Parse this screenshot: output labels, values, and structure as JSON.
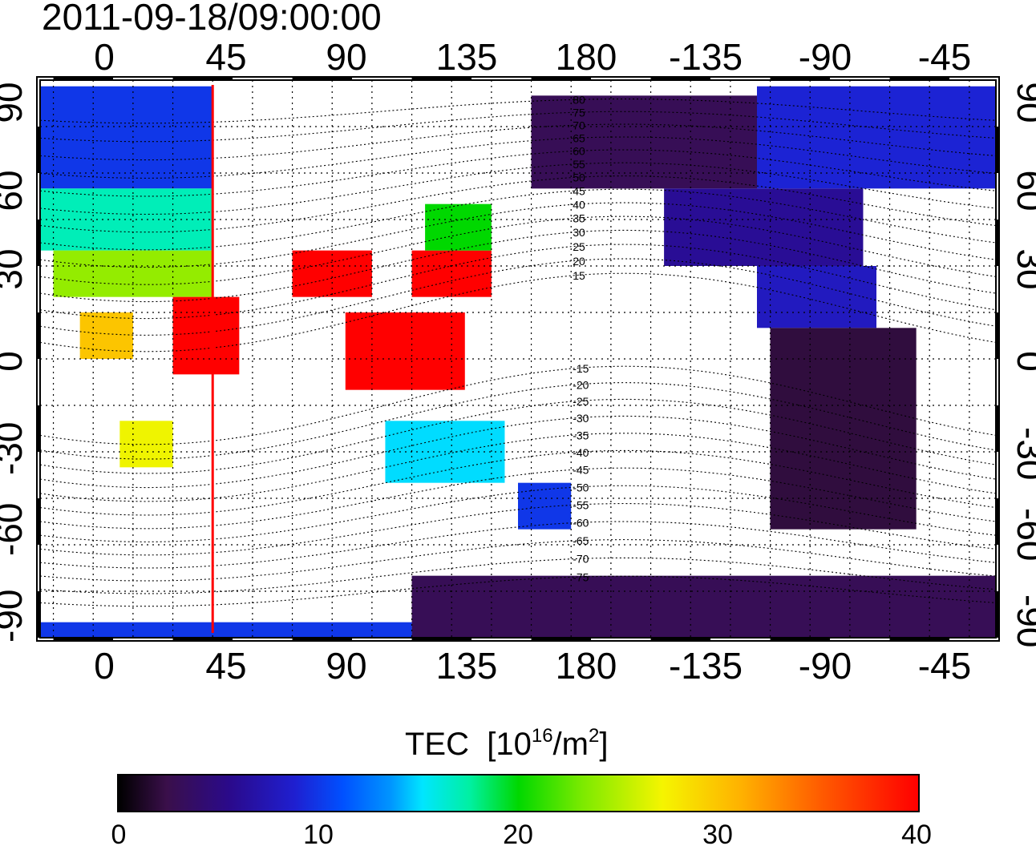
{
  "title": "2011-09-18/09:00:00",
  "axes": {
    "top_ticks": [
      "0",
      "45",
      "90",
      "135",
      "180",
      "-135",
      "-90",
      "-45"
    ],
    "bottom_ticks": [
      "0",
      "45",
      "90",
      "135",
      "180",
      "-135",
      "-90",
      "-45"
    ],
    "left_ticks": [
      "90",
      "60",
      "30",
      "0",
      "-30",
      "-60",
      "-90"
    ],
    "right_ticks": [
      "90",
      "60",
      "30",
      "0",
      "-30",
      "-60",
      "-90"
    ]
  },
  "colorbar": {
    "label": "TEC",
    "unit_prefix": "[10",
    "unit_exp1": "16",
    "unit_mid": "/m",
    "unit_exp2": "2",
    "unit_suffix": "]",
    "ticks": [
      "0",
      "10",
      "20",
      "30",
      "40"
    ],
    "min": 0,
    "max": 40
  },
  "contour_labels": [
    "80",
    "75",
    "70",
    "65",
    "60",
    "55",
    "50",
    "45",
    "40",
    "35",
    "30",
    "25",
    "20",
    "15",
    "-15",
    "-20",
    "-25",
    "-30",
    "-35",
    "-40",
    "-45",
    "-50",
    "-55",
    "-60",
    "-65",
    "-70",
    "-75"
  ],
  "colors": {
    "marker_line": "#ff0000"
  },
  "chart_data": {
    "type": "heatmap",
    "x_domain": [
      -20,
      340
    ],
    "y_domain": [
      -90,
      90
    ],
    "marker_longitude": 45,
    "value_range": [
      0,
      40
    ],
    "regions": [
      {
        "lon": [
          -20,
          45
        ],
        "lat": [
          55,
          88
        ],
        "tec": 10
      },
      {
        "lon": [
          -20,
          45
        ],
        "lat": [
          35,
          55
        ],
        "tec": 17
      },
      {
        "lon": [
          -15,
          45
        ],
        "lat": [
          20,
          35
        ],
        "tec": 24
      },
      {
        "lon": [
          -5,
          15
        ],
        "lat": [
          0,
          15
        ],
        "tec": 30
      },
      {
        "lon": [
          10,
          30
        ],
        "lat": [
          -35,
          -20
        ],
        "tec": 27
      },
      {
        "lon": [
          30,
          55
        ],
        "lat": [
          -5,
          20
        ],
        "tec": 40
      },
      {
        "lon": [
          75,
          105
        ],
        "lat": [
          20,
          35
        ],
        "tec": 40
      },
      {
        "lon": [
          95,
          140
        ],
        "lat": [
          -10,
          15
        ],
        "tec": 40
      },
      {
        "lon": [
          120,
          150
        ],
        "lat": [
          20,
          35
        ],
        "tec": 40
      },
      {
        "lon": [
          125,
          150
        ],
        "lat": [
          35,
          50
        ],
        "tec": 20
      },
      {
        "lon": [
          110,
          155
        ],
        "lat": [
          -40,
          -20
        ],
        "tec": 15
      },
      {
        "lon": [
          160,
          180
        ],
        "lat": [
          -55,
          -40
        ],
        "tec": 10
      },
      {
        "lon": [
          165,
          250
        ],
        "lat": [
          55,
          85
        ],
        "tec": 3
      },
      {
        "lon": [
          215,
          290
        ],
        "lat": [
          30,
          55
        ],
        "tec": 6
      },
      {
        "lon": [
          250,
          295
        ],
        "lat": [
          10,
          30
        ],
        "tec": 8
      },
      {
        "lon": [
          255,
          310
        ],
        "lat": [
          -55,
          10
        ],
        "tec": 2
      },
      {
        "lon": [
          120,
          340
        ],
        "lat": [
          -90,
          -70
        ],
        "tec": 3
      },
      {
        "lon": [
          -20,
          120
        ],
        "lat": [
          -90,
          -85
        ],
        "tec": 10
      },
      {
        "lon": [
          250,
          340
        ],
        "lat": [
          55,
          88
        ],
        "tec": 9
      }
    ]
  }
}
